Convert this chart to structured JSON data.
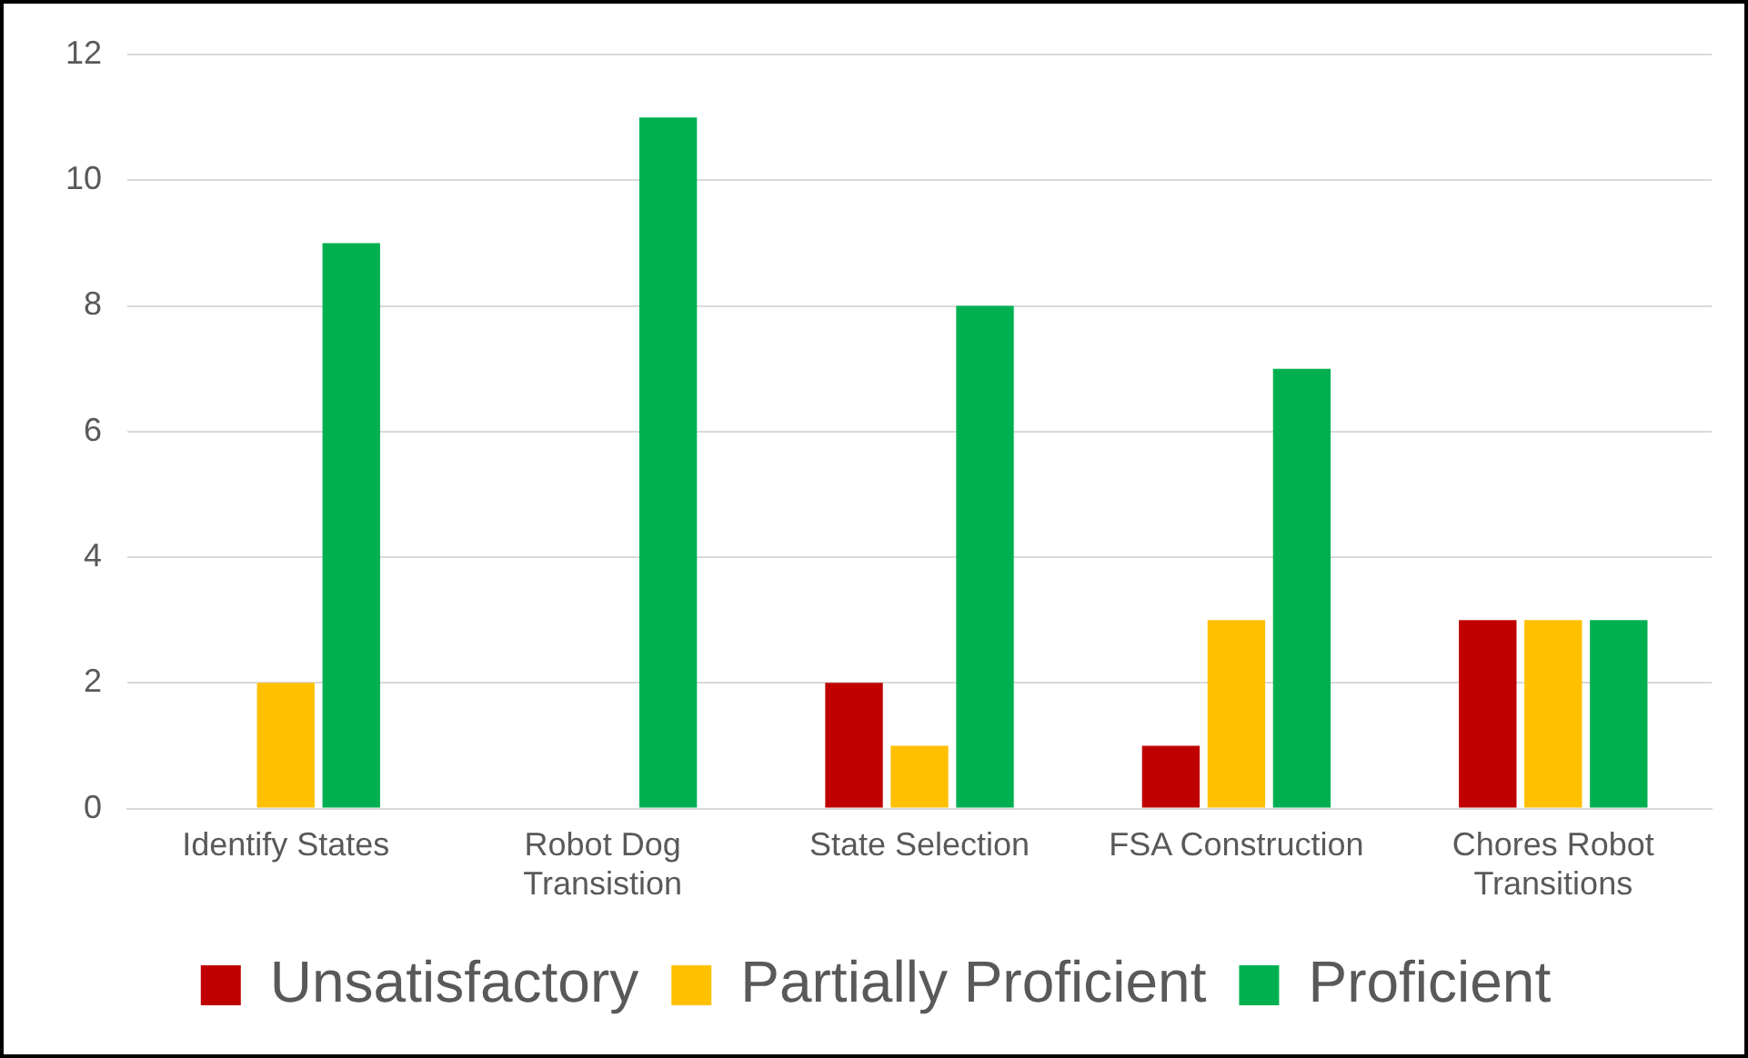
{
  "chart_data": {
    "type": "bar",
    "categories": [
      "Identify States",
      "Robot Dog Transistion",
      "State Selection",
      "FSA Construction",
      "Chores Robot Transitions"
    ],
    "series": [
      {
        "name": "Unsatisfactory",
        "color": "#c00000",
        "values": [
          0,
          0,
          2,
          1,
          3
        ]
      },
      {
        "name": "Partially Proficient",
        "color": "#ffc000",
        "values": [
          2,
          0,
          1,
          3,
          3
        ]
      },
      {
        "name": "Proficient",
        "color": "#00b050",
        "values": [
          9,
          11,
          8,
          7,
          3
        ]
      }
    ],
    "ylim": [
      0,
      12
    ],
    "yticks": [
      0,
      2,
      4,
      6,
      8,
      10,
      12
    ],
    "grid": "y",
    "legend": "bottom"
  }
}
